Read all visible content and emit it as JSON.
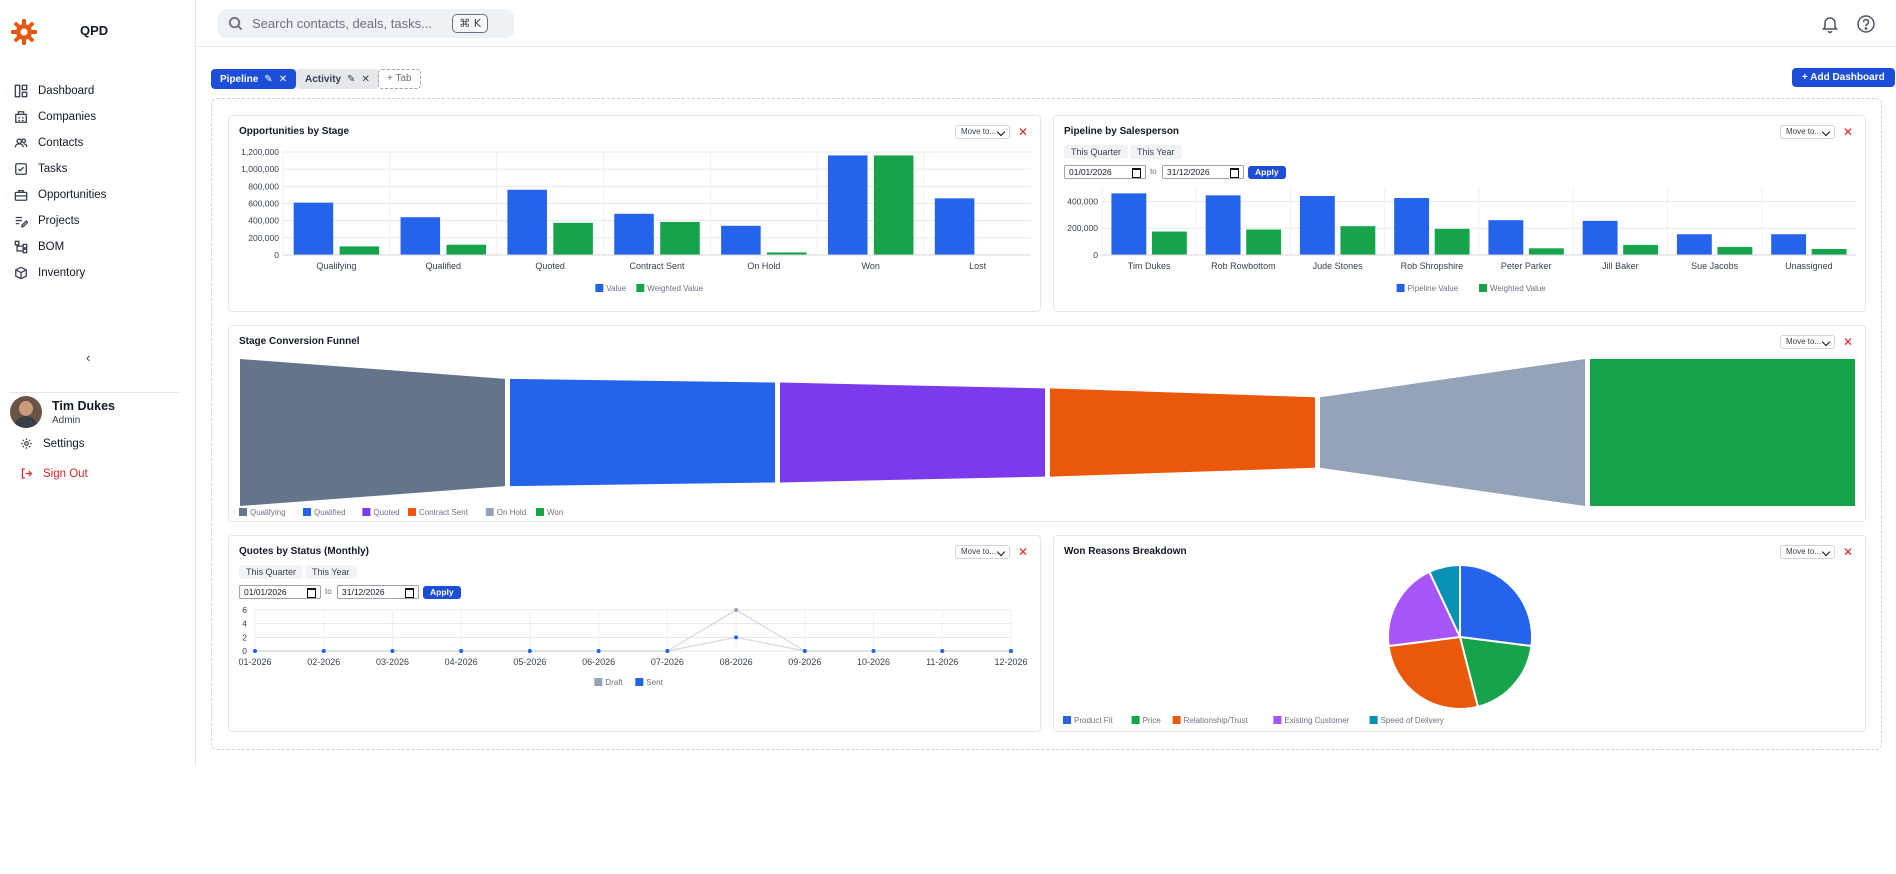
{
  "app": {
    "brand": "QPD"
  },
  "sidebar": {
    "items": [
      {
        "label": "Dashboard",
        "icon": "dashboard-icon"
      },
      {
        "label": "Companies",
        "icon": "building-icon"
      },
      {
        "label": "Contacts",
        "icon": "contacts-icon"
      },
      {
        "label": "Tasks",
        "icon": "checkbox-icon"
      },
      {
        "label": "Opportunities",
        "icon": "briefcase-icon"
      },
      {
        "label": "Projects",
        "icon": "list-edit-icon"
      },
      {
        "label": "BOM",
        "icon": "tree-icon"
      },
      {
        "label": "Inventory",
        "icon": "box-icon"
      }
    ],
    "collapse_label": "‹",
    "user": {
      "name": "Tim Dukes",
      "role": "Admin"
    },
    "settings_label": "Settings",
    "signout_label": "Sign Out"
  },
  "search": {
    "placeholder": "Search contacts, deals, tasks...",
    "shortcut": "⌘ K"
  },
  "tabs": [
    {
      "label": "Pipeline",
      "active": true
    },
    {
      "label": "Activity",
      "active": false
    }
  ],
  "add_tab_label": "+ Tab",
  "add_dashboard_label": "+ Add Dashboard",
  "widget_controls": {
    "move_label": "Move to...",
    "close_label": "✕"
  },
  "filters": {
    "this_quarter": "This Quarter",
    "this_year": "This Year",
    "from": "01/01/2026",
    "to_label": "to",
    "to": "31/12/2026",
    "apply": "Apply"
  },
  "colors": {
    "primary": "#2563eb",
    "green": "#16a34a",
    "danger": "#dc2626"
  },
  "widgets": {
    "opportunities_by_stage": {
      "title": "Opportunities by Stage",
      "chart_data": {
        "type": "bar",
        "categories": [
          "Qualifying",
          "Qualified",
          "Quoted",
          "Contract Sent",
          "On Hold",
          "Won",
          "Lost"
        ],
        "series": [
          {
            "name": "Value",
            "color": "#2563eb",
            "values": [
              610000,
              440000,
              760000,
              480000,
              340000,
              1160000,
              660000
            ]
          },
          {
            "name": "Weighted Value",
            "color": "#16a34a",
            "values": [
              100000,
              120000,
              375000,
              385000,
              30000,
              1160000,
              0
            ]
          }
        ],
        "yticks": [
          "0",
          "200,000",
          "400,000",
          "600,000",
          "800,000",
          "1,000,000",
          "1,200,000"
        ],
        "ylim": [
          0,
          1200000
        ]
      }
    },
    "pipeline_by_salesperson": {
      "title": "Pipeline by Salesperson",
      "chart_data": {
        "type": "bar",
        "categories": [
          "Tim  Dukes",
          "Rob Rowbottom",
          "Jude Stones",
          "Rob  Shropshire",
          "Peter Parker",
          "Jill Baker",
          "Sue Jacobs",
          "Unassigned"
        ],
        "series": [
          {
            "name": "Pipeline Value",
            "color": "#2563eb",
            "values": [
              460000,
              445000,
              440000,
              425000,
              260000,
              255000,
              155000,
              155000
            ]
          },
          {
            "name": "Weighted Value",
            "color": "#16a34a",
            "values": [
              175000,
              190000,
              215000,
              195000,
              50000,
              75000,
              60000,
              45000
            ]
          }
        ],
        "yticks": [
          "0",
          "200,000",
          "400,000"
        ],
        "ylim": [
          0,
          500000
        ]
      }
    },
    "stage_conversion_funnel": {
      "title": "Stage Conversion Funnel",
      "chart_data": {
        "type": "funnel",
        "stages": [
          {
            "name": "Qualifying",
            "color": "#64748b",
            "start": 1.0,
            "end": 0.73
          },
          {
            "name": "Qualified",
            "color": "#2563eb",
            "start": 0.73,
            "end": 0.68
          },
          {
            "name": "Quoted",
            "color": "#7c3aed",
            "start": 0.68,
            "end": 0.6
          },
          {
            "name": "Contract Sent",
            "color": "#ea580c",
            "start": 0.6,
            "end": 0.48
          },
          {
            "name": "On Hold",
            "color": "#94a3b8",
            "start": 0.48,
            "end": 1.0
          },
          {
            "name": "Won",
            "color": "#16a34a",
            "start": 1.0,
            "end": 1.0
          }
        ]
      }
    },
    "quotes_by_status": {
      "title": "Quotes by Status (Monthly)",
      "chart_data": {
        "type": "line",
        "x": [
          "01-2026",
          "02-2026",
          "03-2026",
          "04-2026",
          "05-2026",
          "06-2026",
          "07-2026",
          "08-2026",
          "09-2026",
          "10-2026",
          "11-2026",
          "12-2026"
        ],
        "series": [
          {
            "name": "Draft",
            "color": "#94a3b8",
            "values": [
              0,
              0,
              0,
              0,
              0,
              0,
              0,
              6,
              0,
              0,
              0,
              0
            ]
          },
          {
            "name": "Sent",
            "color": "#2563eb",
            "values": [
              0,
              0,
              0,
              0,
              0,
              0,
              0,
              2,
              0,
              0,
              0,
              0
            ]
          }
        ],
        "yticks": [
          "0",
          "2",
          "4",
          "6"
        ],
        "ylim": [
          0,
          6
        ]
      }
    },
    "won_reasons_breakdown": {
      "title": "Won Reasons Breakdown",
      "chart_data": {
        "type": "pie",
        "series": [
          {
            "name": "Product Fit",
            "color": "#2563eb",
            "value": 27
          },
          {
            "name": "Price",
            "color": "#16a34a",
            "value": 19
          },
          {
            "name": "Relationship/Trust",
            "color": "#ea580c",
            "value": 27
          },
          {
            "name": "Existing Customer",
            "color": "#a855f7",
            "value": 20
          },
          {
            "name": "Speed of Delivery",
            "color": "#0891b2",
            "value": 7
          }
        ]
      }
    }
  }
}
